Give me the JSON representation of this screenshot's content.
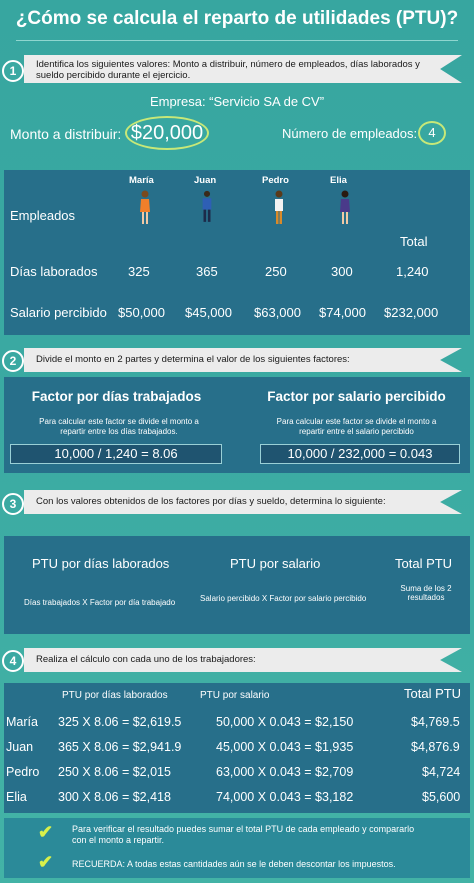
{
  "title": "¿Cómo se calcula el reparto de utilidades (PTU)?",
  "step1": {
    "num": "1",
    "text": "Identifica los siguientes valores: Monto a distribuir, número de empleados, días laborados y sueldo percibido durante el ejercicio."
  },
  "company": "Empresa: “Servicio SA de CV”",
  "monto_label": "Monto a distribuir:",
  "monto_value": "$20,000",
  "employees_label": "Número de empleados:",
  "employees_value": "4",
  "table1": {
    "names": [
      "María",
      "Juan",
      "Pedro",
      "Elia"
    ],
    "row_labels": [
      "Empleados",
      "Días laborados",
      "Salario percibido"
    ],
    "total_label": "Total",
    "dias": [
      "325",
      "365",
      "250",
      "300",
      "1,240"
    ],
    "salarios": [
      "$50,000",
      "$45,000",
      "$63,000",
      "$74,000",
      "$232,000"
    ]
  },
  "step2": {
    "num": "2",
    "text": "Divide el monto en 2 partes y determina el valor de los siguientes factores:"
  },
  "factor1": {
    "title": "Factor por días trabajados",
    "desc": "Para calcular este factor se divide el monto a repartir entre los días trabajados.",
    "formula": "10,000 / 1,240 = 8.06"
  },
  "factor2": {
    "title": "Factor por salario percibido",
    "desc": "Para calcular este factor se divide el monto a repartir entre el salario percibido",
    "formula": "10,000 / 232,000 = 0.043"
  },
  "step3": {
    "num": "3",
    "text": "Con los valores obtenidos de los factores por días y sueldo, determina lo siguiente:"
  },
  "s3": {
    "h1": "PTU por días laborados",
    "d1": "Días trabajados  X  Factor por día trabajado",
    "h2": "PTU por salario",
    "d2": "Salario percibido  X  Factor por salario percibido",
    "h3": "Total PTU",
    "d3": "Suma de los 2 resultados"
  },
  "step4": {
    "num": "4",
    "text": "Realiza el cálculo con cada uno de los trabajadores:"
  },
  "table4": {
    "h1": "PTU por días laborados",
    "h2": "PTU por salario",
    "h3": "Total PTU",
    "rows": [
      {
        "name": "María",
        "dias": "325 X 8.06 = $2,619.5",
        "salario": "50,000 X 0.043 = $2,150",
        "total": "$4,769.5"
      },
      {
        "name": "Juan",
        "dias": "365 X 8.06 = $2,941.9",
        "salario": "45,000 X 0.043 = $1,935",
        "total": "$4,876.9"
      },
      {
        "name": "Pedro",
        "dias": "250 X 8.06 = $2,015",
        "salario": "63,000 X 0.043 = $2,709",
        "total": "$4,724"
      },
      {
        "name": "Elia",
        "dias": "300 X 8.06 = $2,418",
        "salario": "74,000 X 0.043 = $3,182",
        "total": "$5,600"
      }
    ]
  },
  "notes": [
    "Para verificar el resultado puedes sumar el total PTU de cada empleado y compararlo con el monto a repartir.",
    "RECUERDA: A todas estas cantidades aún se le deben descontar los impuestos."
  ],
  "colors": {
    "background": "#3aa9a2",
    "panel": "#276f8a",
    "accent": "#c7e878",
    "check": "#d8f04a"
  },
  "icons": {
    "check": "check-icon",
    "person": "person-icon"
  }
}
